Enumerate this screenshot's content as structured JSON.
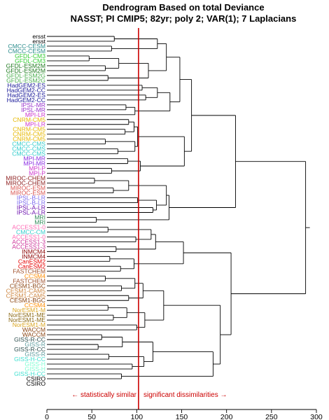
{
  "chart_data": {
    "type": "dendrogram",
    "title_line1": "Dendrogram Based on total Deviance",
    "title_line2": "NASST; PI CMIP5; 82yr; poly 2; VAR(1); 7 Laplacians",
    "xlim": [
      0,
      300
    ],
    "ticks": [
      0,
      50,
      100,
      150,
      200,
      250,
      300
    ],
    "threshold": 102,
    "threshold_color": "#cc0000",
    "annotation_left": "← statistically similar",
    "annotation_right": "significant dissimilarities →",
    "annotation_color": "#cc0000",
    "leaves": [
      {
        "label": "ersst",
        "color": "#000000"
      },
      {
        "label": "ersst",
        "color": "#000000"
      },
      {
        "label": "CMCC-CESM",
        "color": "#2a8c8c"
      },
      {
        "label": "CMCC-CESM",
        "color": "#2a8c8c"
      },
      {
        "label": "GFDL-CM3",
        "color": "#33cc33"
      },
      {
        "label": "GFDL-CM3",
        "color": "#33cc33"
      },
      {
        "label": "GFDL-ESM2M",
        "color": "#1f7a1f"
      },
      {
        "label": "GFDL-ESM2M",
        "color": "#1f7a1f"
      },
      {
        "label": "GFDL-ESM2G",
        "color": "#4caf50"
      },
      {
        "label": "GFDL-ESM2G",
        "color": "#4caf50"
      },
      {
        "label": "HadGEM2-ES",
        "color": "#1a1a99"
      },
      {
        "label": "HadGEM2-CC",
        "color": "#1a1a99"
      },
      {
        "label": "HadGEM2-ES",
        "color": "#1a1a99"
      },
      {
        "label": "HadGEM2-CC",
        "color": "#1a1a99"
      },
      {
        "label": "IPSL-MR",
        "color": "#9933cc"
      },
      {
        "label": "IPSL-MR",
        "color": "#9933cc"
      },
      {
        "label": "MPI-LR",
        "color": "#cc33cc"
      },
      {
        "label": "CNRM-CM5",
        "color": "#e6b800"
      },
      {
        "label": "MPI-LR",
        "color": "#cc33cc"
      },
      {
        "label": "CNRM-CM5",
        "color": "#e6b800"
      },
      {
        "label": "CNRM-CM5",
        "color": "#e6b800"
      },
      {
        "label": "CNRM-CM5",
        "color": "#e6b800"
      },
      {
        "label": "CMCC-CMS",
        "color": "#33cccc"
      },
      {
        "label": "CMCC-CMS",
        "color": "#33cccc"
      },
      {
        "label": "CMCC-CMS",
        "color": "#33cccc"
      },
      {
        "label": "MPI-MR",
        "color": "#8a2be2"
      },
      {
        "label": "MPI-MR",
        "color": "#8a2be2"
      },
      {
        "label": "MPI-P",
        "color": "#cc33cc"
      },
      {
        "label": "MPI-P",
        "color": "#cc33cc"
      },
      {
        "label": "MIROC-CHEM",
        "color": "#8b1a1a"
      },
      {
        "label": "MIROC-CHEM",
        "color": "#8b1a1a"
      },
      {
        "label": "MIROC-ESM",
        "color": "#d9534f"
      },
      {
        "label": "MIROC-ESM",
        "color": "#d9534f"
      },
      {
        "label": "IPSL-B-LR",
        "color": "#7b68ee"
      },
      {
        "label": "IPSL-B-LR",
        "color": "#7b68ee"
      },
      {
        "label": "IPSL-A-LR",
        "color": "#6a0dad"
      },
      {
        "label": "IPSL-A-LR",
        "color": "#6a0dad"
      },
      {
        "label": "MRI",
        "color": "#2e8b57"
      },
      {
        "label": "MRI",
        "color": "#2e8b57"
      },
      {
        "label": "ACCESS1-0",
        "color": "#ff69b4"
      },
      {
        "label": "CMCC-CM",
        "color": "#33cccc"
      },
      {
        "label": "ACCESS1-0",
        "color": "#ff69b4"
      },
      {
        "label": "ACCESS1-3",
        "color": "#cc3399"
      },
      {
        "label": "ACCESS1-3",
        "color": "#cc3399"
      },
      {
        "label": "INMCM4",
        "color": "#8b0000"
      },
      {
        "label": "INMCM4",
        "color": "#8b0000"
      },
      {
        "label": "CanESM2",
        "color": "#e60000"
      },
      {
        "label": "CanESM2",
        "color": "#e60000"
      },
      {
        "label": "FASTCHEM",
        "color": "#a0522d"
      },
      {
        "label": "CCSM4",
        "color": "#ff8c00"
      },
      {
        "label": "FASTCHEM",
        "color": "#a0522d"
      },
      {
        "label": "CESM1-BGC",
        "color": "#8b4513"
      },
      {
        "label": "CESM1-CAM5",
        "color": "#cd853f"
      },
      {
        "label": "CESM1-CAM5",
        "color": "#cd853f"
      },
      {
        "label": "CESM1-BGC",
        "color": "#8b4513"
      },
      {
        "label": "CCSM4",
        "color": "#ff8c00"
      },
      {
        "label": "NorESM1-M",
        "color": "#daa520"
      },
      {
        "label": "NorESM1-ME",
        "color": "#8b6914"
      },
      {
        "label": "NorESM1-ME",
        "color": "#8b6914"
      },
      {
        "label": "NorESM1-M",
        "color": "#daa520"
      },
      {
        "label": "WACCM",
        "color": "#8b4513"
      },
      {
        "label": "WACCM",
        "color": "#8b4513"
      },
      {
        "label": "GISS-R-CC",
        "color": "#2f4f4f"
      },
      {
        "label": "GISS-R",
        "color": "#5f9ea0"
      },
      {
        "label": "GISS-R-CC",
        "color": "#2f4f4f"
      },
      {
        "label": "GISS-R",
        "color": "#5f9ea0"
      },
      {
        "label": "GISS-H-CC",
        "color": "#40e0d0"
      },
      {
        "label": "GISS-H",
        "color": "#7fffd4"
      },
      {
        "label": "GISS-H",
        "color": "#7fffd4"
      },
      {
        "label": "GISS-H-CC",
        "color": "#40e0d0"
      },
      {
        "label": "CSIRO",
        "color": "#000000"
      },
      {
        "label": "CSIRO",
        "color": "#000000"
      }
    ],
    "merges": [
      {
        "a": "L0",
        "b": "L1",
        "h": 75
      },
      {
        "a": "L2",
        "b": "L3",
        "h": 72
      },
      {
        "a": "N0",
        "b": "N1",
        "h": 123
      },
      {
        "a": "L4",
        "b": "L5",
        "h": 47
      },
      {
        "a": "L6",
        "b": "L7",
        "h": 65
      },
      {
        "a": "N3",
        "b": "N4",
        "h": 80
      },
      {
        "a": "L8",
        "b": "L9",
        "h": 68
      },
      {
        "a": "N5",
        "b": "N6",
        "h": 113
      },
      {
        "a": "N2",
        "b": "N7",
        "h": 133
      },
      {
        "a": "L10",
        "b": "L11",
        "h": 106
      },
      {
        "a": "L12",
        "b": "L13",
        "h": 110
      },
      {
        "a": "N9",
        "b": "N10",
        "h": 123
      },
      {
        "a": "L14",
        "b": "L15",
        "h": 88
      },
      {
        "a": "N12",
        "b": "L16",
        "h": 98
      },
      {
        "a": "N11",
        "b": "N13",
        "h": 137
      },
      {
        "a": "N8",
        "b": "N14",
        "h": 148
      },
      {
        "a": "L17",
        "b": "L18",
        "h": 91
      },
      {
        "a": "L19",
        "b": "L20",
        "h": 87
      },
      {
        "a": "N16",
        "b": "N17",
        "h": 97
      },
      {
        "a": "L21",
        "b": "L22",
        "h": 65
      },
      {
        "a": "L23",
        "b": "L24",
        "h": 79
      },
      {
        "a": "N19",
        "b": "N20",
        "h": 98
      },
      {
        "a": "N18",
        "b": "N21",
        "h": 101
      },
      {
        "a": "L25",
        "b": "L26",
        "h": 90
      },
      {
        "a": "L27",
        "b": "L28",
        "h": 72
      },
      {
        "a": "N23",
        "b": "N24",
        "h": 104
      },
      {
        "a": "N22",
        "b": "N25",
        "h": 153
      },
      {
        "a": "N15",
        "b": "N26",
        "h": 161
      },
      {
        "a": "L29",
        "b": "L30",
        "h": 53
      },
      {
        "a": "L31",
        "b": "L32",
        "h": 74
      },
      {
        "a": "N28",
        "b": "N29",
        "h": 91
      },
      {
        "a": "L33",
        "b": "L34",
        "h": 101
      },
      {
        "a": "L35",
        "b": "L36",
        "h": 118
      },
      {
        "a": "N31",
        "b": "N32",
        "h": 122
      },
      {
        "a": "N30",
        "b": "N33",
        "h": 133
      },
      {
        "a": "L37",
        "b": "L38",
        "h": 55
      },
      {
        "a": "N34",
        "b": "N35",
        "h": 136
      },
      {
        "a": "N27",
        "b": "N36",
        "h": 210
      },
      {
        "a": "L39",
        "b": "L40",
        "h": 68
      },
      {
        "a": "L41",
        "b": "L42",
        "h": 99
      },
      {
        "a": "N38",
        "b": "N39",
        "h": 116
      },
      {
        "a": "L43",
        "b": "L44",
        "h": 77
      },
      {
        "a": "N40",
        "b": "N41",
        "h": 121
      },
      {
        "a": "L45",
        "b": "L46",
        "h": 70
      },
      {
        "a": "L47",
        "b": "L48",
        "h": 82
      },
      {
        "a": "N43",
        "b": "N44",
        "h": 97
      },
      {
        "a": "N42",
        "b": "N45",
        "h": 152
      },
      {
        "a": "L49",
        "b": "L50",
        "h": 65
      },
      {
        "a": "L51",
        "b": "L52",
        "h": 83
      },
      {
        "a": "N47",
        "b": "N48",
        "h": 98
      },
      {
        "a": "L53",
        "b": "L54",
        "h": 91
      },
      {
        "a": "N49",
        "b": "N50",
        "h": 107
      },
      {
        "a": "L55",
        "b": "L56",
        "h": 68
      },
      {
        "a": "L57",
        "b": "L58",
        "h": 74
      },
      {
        "a": "N52",
        "b": "N53",
        "h": 89
      },
      {
        "a": "L59",
        "b": "L60",
        "h": 100
      },
      {
        "a": "N54",
        "b": "N55",
        "h": 109
      },
      {
        "a": "N51",
        "b": "N56",
        "h": 130
      },
      {
        "a": "L61",
        "b": "L62",
        "h": 61
      },
      {
        "a": "L63",
        "b": "L64",
        "h": 57
      },
      {
        "a": "N58",
        "b": "N59",
        "h": 84
      },
      {
        "a": "L65",
        "b": "L66",
        "h": 69
      },
      {
        "a": "L67",
        "b": "L68",
        "h": 95
      },
      {
        "a": "N61",
        "b": "N62",
        "h": 108
      },
      {
        "a": "N60",
        "b": "N63",
        "h": 118
      },
      {
        "a": "L69",
        "b": "L70",
        "h": 83
      },
      {
        "a": "N64",
        "b": "N65",
        "h": 185
      },
      {
        "a": "N57",
        "b": "N66",
        "h": 193
      },
      {
        "a": "N46",
        "b": "N67",
        "h": 205
      },
      {
        "a": "N37",
        "b": "N68",
        "h": 288
      }
    ]
  }
}
